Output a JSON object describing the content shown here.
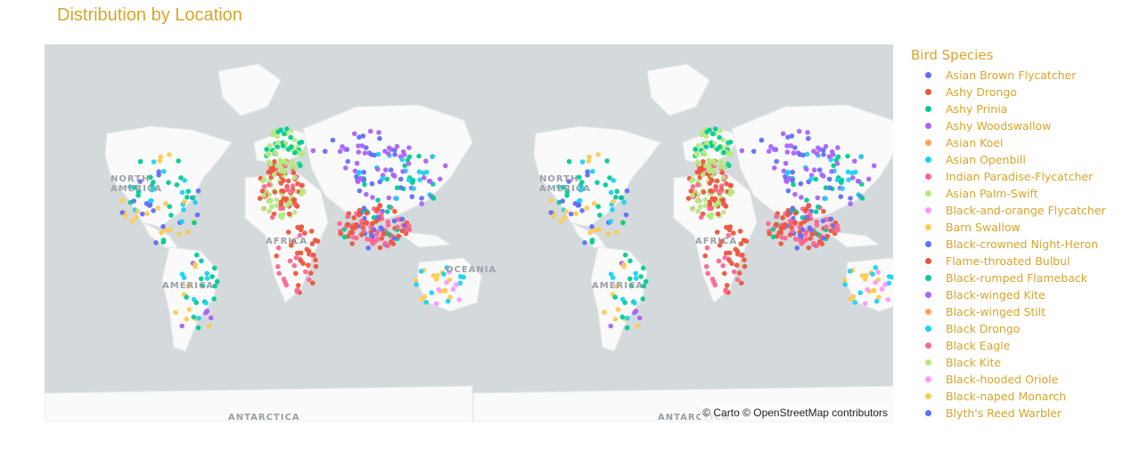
{
  "title": "Distribution by Location",
  "attribution": "© Carto © OpenStreetMap contributors",
  "map_labels": [
    "NORTH",
    "AMERICA",
    "AFRICA",
    "AMERICA",
    "OCEANIA",
    "ANTARCTICA"
  ],
  "legend": {
    "title": "Bird Species",
    "items": [
      {
        "label": "Asian Brown Flycatcher",
        "color": "#636efa"
      },
      {
        "label": "Ashy Drongo",
        "color": "#ef553b"
      },
      {
        "label": "Ashy Prinia",
        "color": "#00cc96"
      },
      {
        "label": "Ashy Woodswallow",
        "color": "#ab63fa"
      },
      {
        "label": "Asian Koel",
        "color": "#ffa15a"
      },
      {
        "label": "Asian Openbill",
        "color": "#19d3f3"
      },
      {
        "label": "Indian Paradise-Flycatcher",
        "color": "#ff6692"
      },
      {
        "label": "Asian Palm-Swift",
        "color": "#b6e880"
      },
      {
        "label": "Black-and-orange Flycatcher",
        "color": "#ff97ff"
      },
      {
        "label": "Barn Swallow",
        "color": "#fecb52"
      },
      {
        "label": "Black-crowned Night-Heron",
        "color": "#636efa"
      },
      {
        "label": "Flame-throated Bulbul",
        "color": "#ef553b"
      },
      {
        "label": "Black-rumped Flameback",
        "color": "#00cc96"
      },
      {
        "label": "Black-winged Kite",
        "color": "#ab63fa"
      },
      {
        "label": "Black-winged Stilt",
        "color": "#ffa15a"
      },
      {
        "label": "Black Drongo",
        "color": "#19d3f3"
      },
      {
        "label": "Black Eagle",
        "color": "#ff6692"
      },
      {
        "label": "Black Kite",
        "color": "#b6e880"
      },
      {
        "label": "Black-hooded Oriole",
        "color": "#ff97ff"
      },
      {
        "label": "Black-naped Monarch",
        "color": "#fecb52"
      },
      {
        "label": "Blyth's Reed Warbler",
        "color": "#636efa"
      }
    ]
  },
  "chart_data": {
    "type": "scatter_map",
    "map_style": "carto-positron",
    "title": "Distribution by Location",
    "legend_title": "Bird Species",
    "legend_placement": "right"
  }
}
